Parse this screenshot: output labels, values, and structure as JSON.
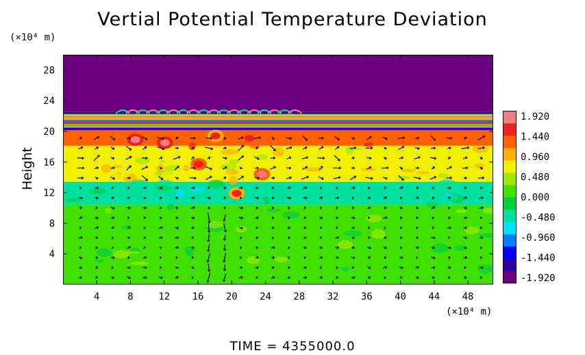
{
  "chart_data": {
    "type": "heatmap",
    "title": "Vertial Potential Temperature Deviation",
    "ylabel": "Height",
    "x_unit_label": "(×10⁴ m)",
    "y_unit_label": "(×10⁴ m)",
    "time_label": "TIME  =  4355000.0",
    "xlim": [
      0,
      51
    ],
    "ylim": [
      0,
      30
    ],
    "x_ticks": [
      4,
      8,
      12,
      16,
      20,
      24,
      28,
      32,
      36,
      40,
      44,
      48
    ],
    "y_ticks": [
      4,
      8,
      12,
      16,
      20,
      24,
      28
    ],
    "colorbar": {
      "ticks": [
        "1.920",
        "1.440",
        "0.960",
        "0.480",
        "0.000",
        "-0.480",
        "-0.960",
        "-1.440",
        "-1.920"
      ],
      "range": [
        -1.92,
        1.92
      ],
      "colors": [
        "#6a0080",
        "#2a00a0",
        "#0000ff",
        "#0080ff",
        "#00e0ff",
        "#00e0a0",
        "#00d040",
        "#40e000",
        "#a0e800",
        "#f0f000",
        "#ffb000",
        "#ff6000",
        "#f02020",
        "#f08080"
      ]
    },
    "field_layers": [
      {
        "y_from": 22.6,
        "y_to": 30,
        "value": -1.92,
        "description": "upper region"
      },
      {
        "y_from": 20.3,
        "y_to": 22.6,
        "value": 1.9,
        "description": "banded layer"
      },
      {
        "y_from": 18.2,
        "y_to": 20.3,
        "value": 1.1,
        "description": "warm layer"
      },
      {
        "y_from": 13.5,
        "y_to": 18.2,
        "value": 0.55,
        "description": "mid layer"
      },
      {
        "y_from": 10.5,
        "y_to": 13.5,
        "value": -0.3,
        "description": "cool band"
      },
      {
        "y_from": 0,
        "y_to": 10.5,
        "value": 0.15,
        "description": "lower layer"
      }
    ],
    "hotspots": [
      {
        "x": 8.5,
        "y": 19.0,
        "value": 1.9
      },
      {
        "x": 12.0,
        "y": 18.6,
        "value": 1.9
      },
      {
        "x": 16.0,
        "y": 15.8,
        "value": 1.6
      },
      {
        "x": 23.5,
        "y": 14.5,
        "value": 1.7
      },
      {
        "x": 20.5,
        "y": 12.0,
        "value": 1.5
      },
      {
        "x": 18.0,
        "y": 19.5,
        "value": 1.4
      },
      {
        "x": 22.0,
        "y": 19.2,
        "value": 1.6
      }
    ]
  }
}
